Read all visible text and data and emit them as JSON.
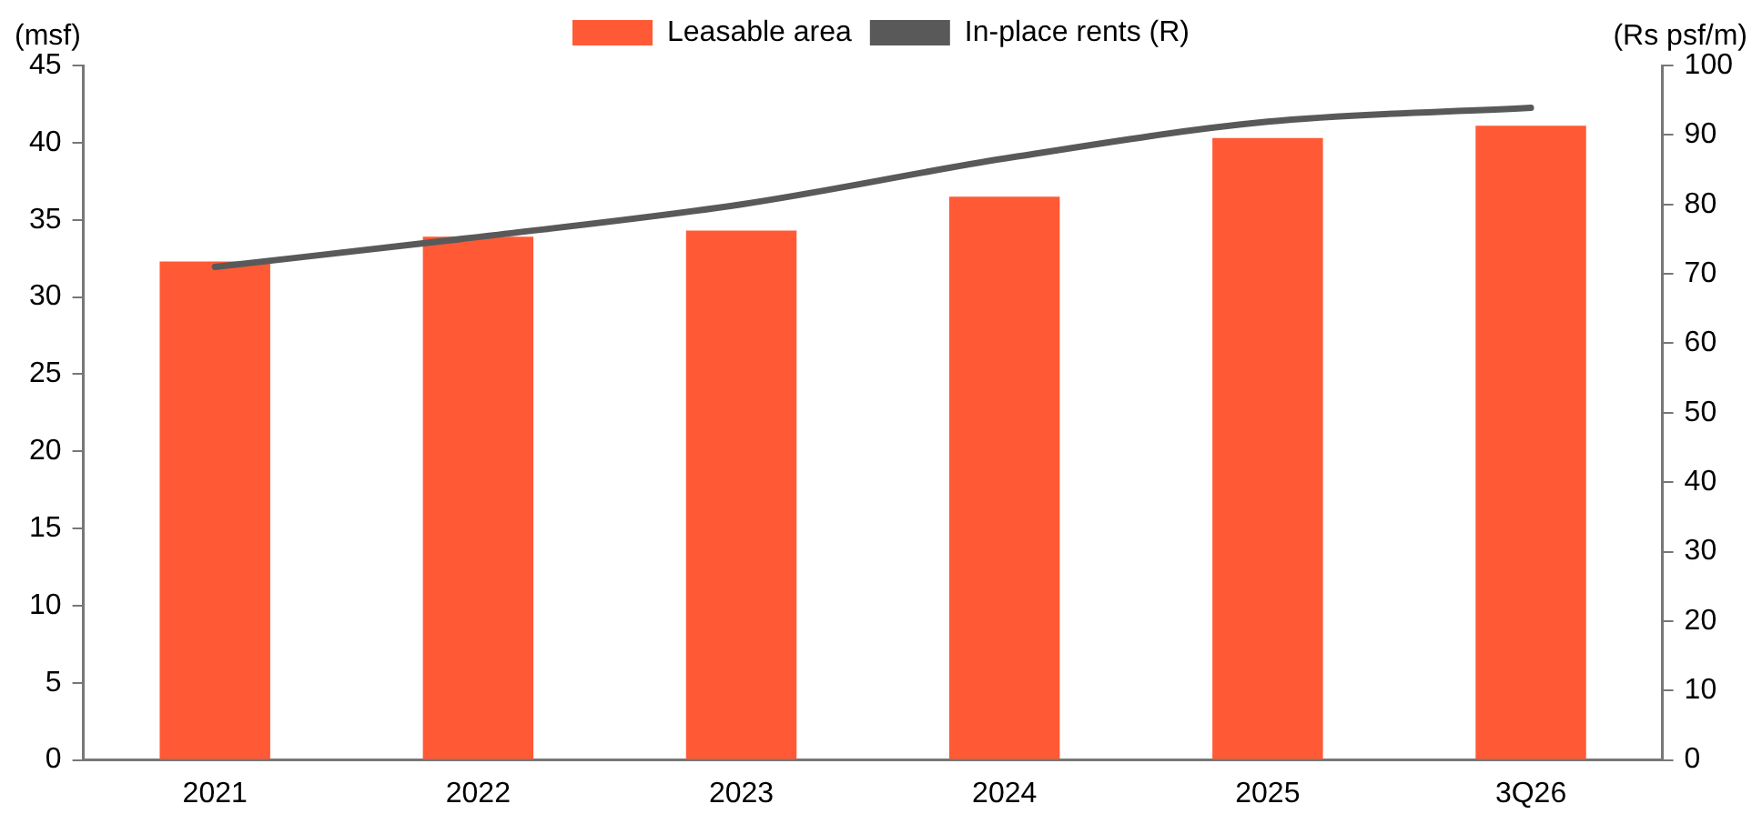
{
  "chart_data": {
    "type": "bar",
    "ylabel": "(msf)",
    "y2label": "(Rs psf/m)",
    "categories": [
      "2021",
      "2022",
      "2023",
      "2024",
      "2025",
      "3Q26"
    ],
    "series": [
      {
        "name": "Leasable area",
        "color": "#ff5a35",
        "values": [
          32.3,
          33.9,
          34.3,
          36.5,
          40.3,
          41.1
        ]
      },
      {
        "name": "In-place rents (R)",
        "type": "line",
        "axis": "y2",
        "color": "#595959",
        "values": [
          71,
          75.3,
          80,
          86.6,
          91.9,
          93.9
        ]
      }
    ],
    "ylim": [
      0,
      45
    ],
    "yticks": [
      0,
      5,
      10,
      15,
      20,
      25,
      30,
      35,
      40,
      45
    ],
    "y2lim": [
      0,
      100
    ],
    "y2ticks": [
      0,
      10,
      20,
      30,
      40,
      50,
      60,
      70,
      80,
      90,
      100
    ],
    "grid": false,
    "legend": "top",
    "marker": "none",
    "line_style": "solid"
  }
}
